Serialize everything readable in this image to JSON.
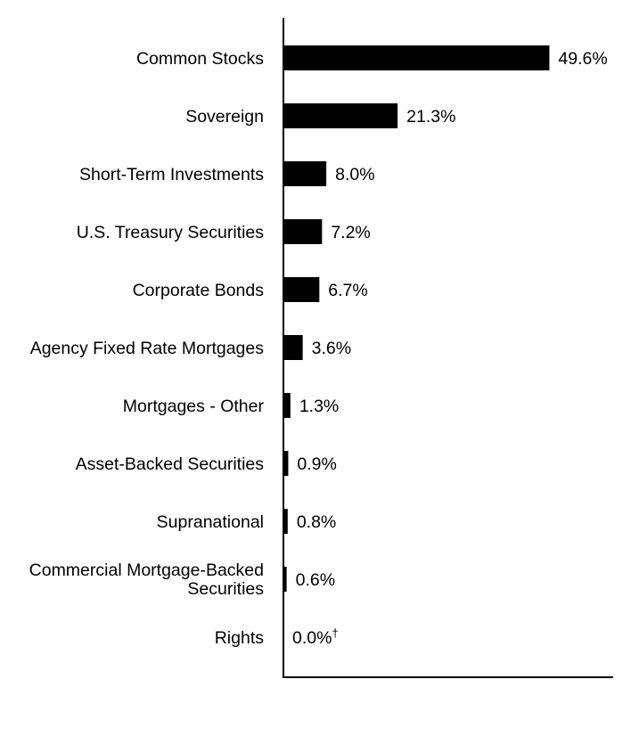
{
  "chart_data": {
    "type": "bar",
    "orientation": "horizontal",
    "categories": [
      "Common Stocks",
      "Sovereign",
      "Short-Term Investments",
      "U.S. Treasury Securities",
      "Corporate Bonds",
      "Agency Fixed Rate Mortgages",
      "Mortgages - Other",
      "Asset-Backed Securities",
      "Supranational",
      "Commercial Mortgage-Backed Securities",
      "Rights"
    ],
    "values": [
      49.6,
      21.3,
      8.0,
      7.2,
      6.7,
      3.6,
      1.3,
      0.9,
      0.8,
      0.6,
      0.0
    ],
    "value_labels": [
      "49.6%",
      "21.3%",
      "8.0%",
      "7.2%",
      "6.7%",
      "3.6%",
      "1.3%",
      "0.9%",
      "0.8%",
      "0.6%",
      "0.0%†"
    ],
    "title": "",
    "xlabel": "",
    "ylabel": "",
    "xlim": [
      0,
      61.5
    ],
    "grid": false,
    "bar_color": "#000000"
  }
}
